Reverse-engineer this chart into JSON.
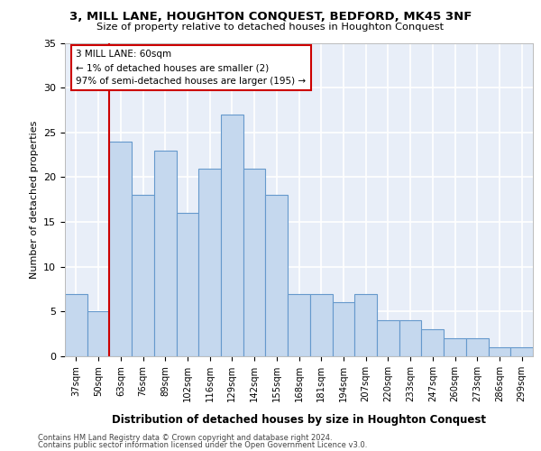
{
  "title1": "3, MILL LANE, HOUGHTON CONQUEST, BEDFORD, MK45 3NF",
  "title2": "Size of property relative to detached houses in Houghton Conquest",
  "xlabel": "Distribution of detached houses by size in Houghton Conquest",
  "ylabel": "Number of detached properties",
  "categories": [
    "37sqm",
    "50sqm",
    "63sqm",
    "76sqm",
    "89sqm",
    "102sqm",
    "116sqm",
    "129sqm",
    "142sqm",
    "155sqm",
    "168sqm",
    "181sqm",
    "194sqm",
    "207sqm",
    "220sqm",
    "233sqm",
    "247sqm",
    "260sqm",
    "273sqm",
    "286sqm",
    "299sqm"
  ],
  "values": [
    7,
    5,
    24,
    18,
    23,
    16,
    21,
    27,
    21,
    18,
    7,
    7,
    6,
    7,
    4,
    4,
    3,
    2,
    2,
    1,
    1
  ],
  "bar_color": "#c5d8ee",
  "bar_edge_color": "#6699cc",
  "bg_color": "#e8eef8",
  "grid_color": "#ffffff",
  "annotation_text": "3 MILL LANE: 60sqm\n← 1% of detached houses are smaller (2)\n97% of semi-detached houses are larger (195) →",
  "vline_color": "#cc0000",
  "box_color": "#cc0000",
  "footer1": "Contains HM Land Registry data © Crown copyright and database right 2024.",
  "footer2": "Contains public sector information licensed under the Open Government Licence v3.0.",
  "ylim": [
    0,
    35
  ],
  "yticks": [
    0,
    5,
    10,
    15,
    20,
    25,
    30,
    35
  ]
}
